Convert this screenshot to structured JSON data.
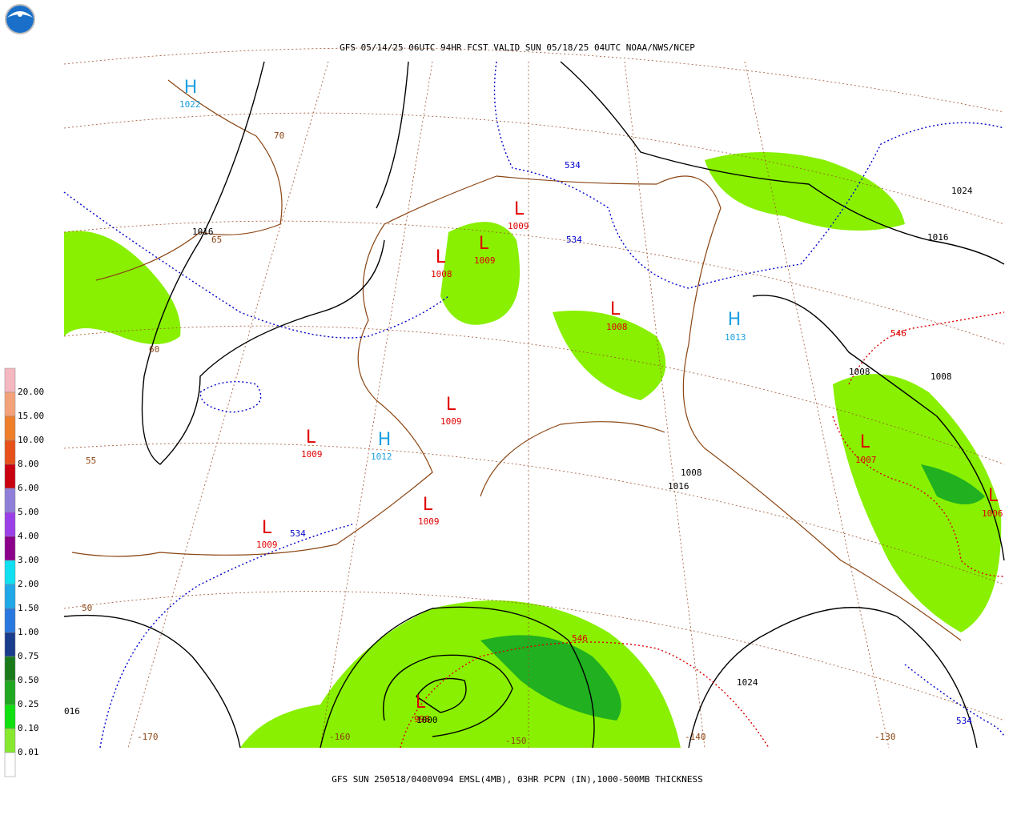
{
  "header": {
    "title": "GFS 05/14/25 06UTC 94HR FCST VALID SUN 05/18/25 04UTC NOAA/NWS/NCEP"
  },
  "footer": {
    "caption": "GFS SUN 250518/0400V094 EMSL(4MB), 03HR PCPN (IN),1000-500MB THICKNESS"
  },
  "legend": {
    "labels": [
      "20.00",
      "15.00",
      "10.00",
      "8.00",
      "6.00",
      "5.00",
      "4.00",
      "3.00",
      "2.00",
      "1.50",
      "1.00",
      "0.75",
      "0.50",
      "0.25",
      "0.10",
      "0.01"
    ],
    "colors": [
      "#f5b7c0",
      "#f4a27a",
      "#f07f2a",
      "#e8501a",
      "#c80010",
      "#8f7fd8",
      "#9b40e8",
      "#8a008a",
      "#10e0f0",
      "#20a8e8",
      "#2878e0",
      "#1a3c8c",
      "#1a7a1a",
      "#20a820",
      "#10e010",
      "#88e830",
      "#ffffff"
    ]
  },
  "map": {
    "pressure_centers": [
      {
        "symbol": "H",
        "value": "1022"
      },
      {
        "symbol": "L",
        "value": "1009"
      },
      {
        "symbol": "L",
        "value": "1009"
      },
      {
        "symbol": "L",
        "value": "1008"
      },
      {
        "symbol": "L",
        "value": "1008"
      },
      {
        "symbol": "H",
        "value": "1013"
      },
      {
        "symbol": "L",
        "value": "1009"
      },
      {
        "symbol": "L",
        "value": "1009"
      },
      {
        "symbol": "H",
        "value": "1012"
      },
      {
        "symbol": "L",
        "value": "1009"
      },
      {
        "symbol": "L",
        "value": "1009"
      },
      {
        "symbol": "L",
        "value": "1007"
      },
      {
        "symbol": "L",
        "value": "1006"
      },
      {
        "symbol": "L",
        "value": "998"
      }
    ],
    "isobar_labels": [
      "1016",
      "1024",
      "1016",
      "1008",
      "1008",
      "1008",
      "1016",
      "1024",
      "1000",
      "016"
    ],
    "thickness_labels": [
      "534",
      "534",
      "534",
      "534",
      "546",
      "546"
    ],
    "grid_labels": [
      "70",
      "65",
      "60",
      "55",
      "50",
      "-170",
      "-160",
      "-150",
      "-140",
      "-130"
    ]
  }
}
